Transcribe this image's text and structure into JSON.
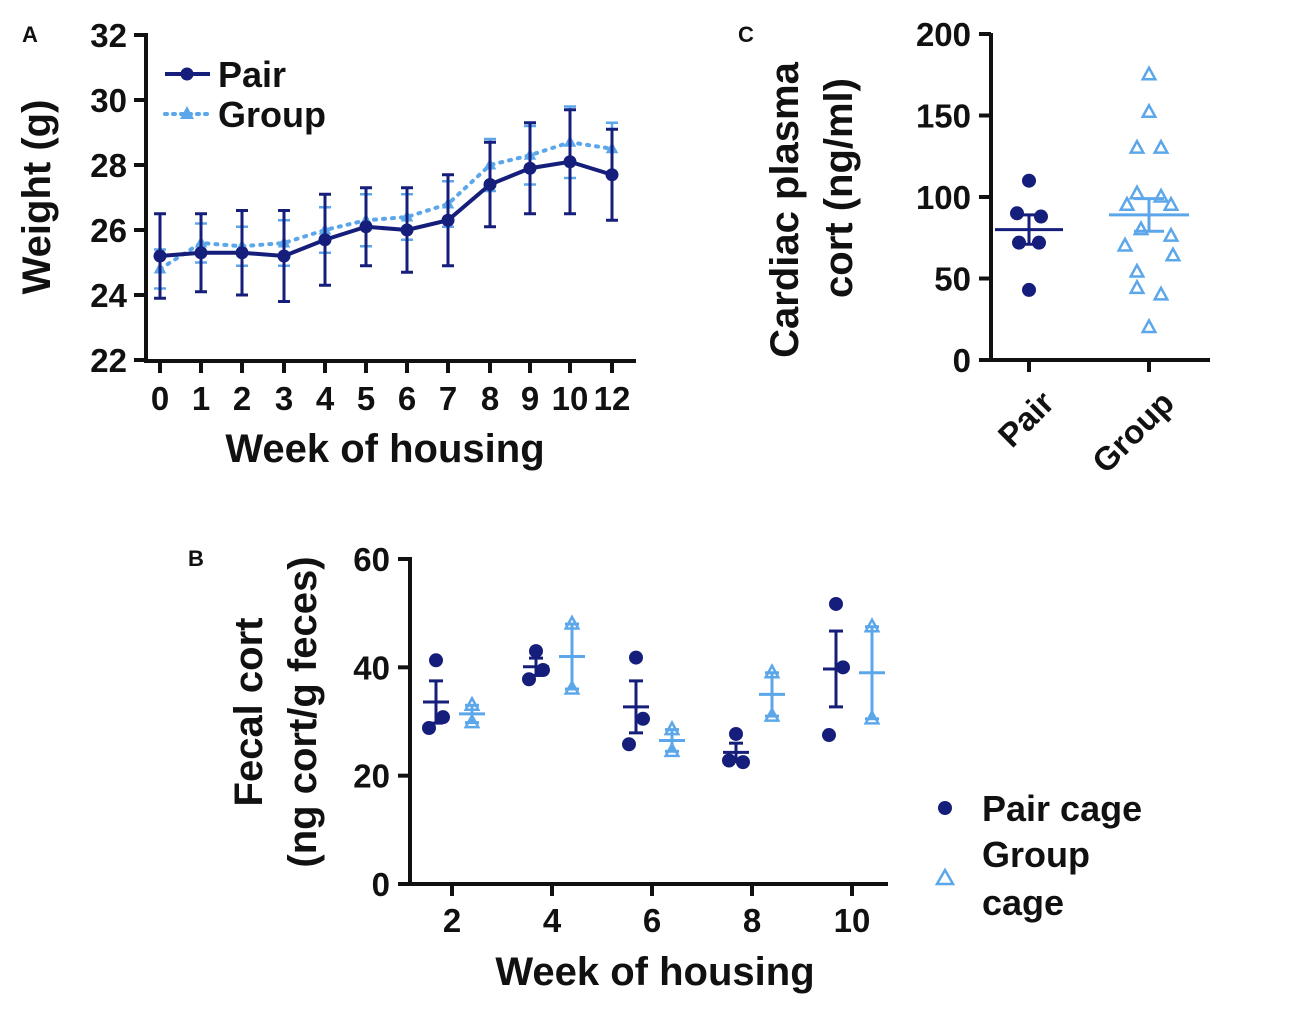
{
  "colors": {
    "pair": "#151e7a",
    "group": "#5ca7ea",
    "axis": "#111111"
  },
  "chart_data": [
    {
      "panel": "A",
      "type": "line",
      "xlabel": "Week of housing",
      "ylabel": "Weight (g)",
      "ylim": [
        22,
        32
      ],
      "yticks": [
        "22",
        "24",
        "26",
        "28",
        "30",
        "32"
      ],
      "xticks": [
        "0",
        "1",
        "2",
        "3",
        "4",
        "5",
        "6",
        "7",
        "8",
        "9",
        "10",
        "12"
      ],
      "legend": {
        "position": "top-left",
        "entries": [
          "Pair",
          "Group"
        ]
      },
      "series": [
        {
          "name": "Pair",
          "style": "solid",
          "marker": "circle",
          "colorKey": "pair",
          "values": [
            25.2,
            25.3,
            25.3,
            25.2,
            25.7,
            26.1,
            26.0,
            26.3,
            27.4,
            27.9,
            28.1,
            27.7
          ],
          "err": [
            1.3,
            1.2,
            1.3,
            1.4,
            1.4,
            1.2,
            1.3,
            1.4,
            1.3,
            1.4,
            1.6,
            1.4
          ]
        },
        {
          "name": "Group",
          "style": "dotted",
          "marker": "triangle",
          "colorKey": "group",
          "values": [
            24.8,
            25.6,
            25.5,
            25.6,
            26.0,
            26.3,
            26.4,
            26.8,
            28.0,
            28.3,
            28.7,
            28.5
          ],
          "err": [
            0.6,
            0.6,
            0.6,
            0.7,
            0.7,
            0.8,
            0.7,
            0.7,
            0.8,
            0.9,
            1.1,
            0.8
          ]
        }
      ]
    },
    {
      "panel": "B",
      "type": "scatter",
      "xlabel": "Week of housing",
      "ylabel": "Fecal cort",
      "ylabel2": "(ng cort/g feces)",
      "ylim": [
        0,
        60
      ],
      "yticks": [
        "0",
        "20",
        "40",
        "60"
      ],
      "categories": [
        "2",
        "4",
        "6",
        "8",
        "10"
      ],
      "legend": {
        "position": "right",
        "entries": [
          "Pair cage",
          "Group",
          "cage"
        ]
      },
      "series": [
        {
          "name": "Pair cage",
          "marker": "circle",
          "colorKey": "pair",
          "points": [
            [
              41.3,
              30.8,
              28.8
            ],
            [
              43.0,
              39.5,
              37.8
            ],
            [
              41.8,
              30.5,
              25.8
            ],
            [
              27.7,
              22.5,
              22.8
            ],
            [
              51.7,
              40.0,
              27.5
            ]
          ],
          "means": [
            33.6,
            40.1,
            32.7,
            24.3,
            39.7
          ],
          "sem": [
            3.9,
            1.6,
            4.8,
            1.7,
            7.0
          ]
        },
        {
          "name": "Group cage",
          "marker": "triangle",
          "colorKey": "group",
          "points": [
            [
              33.0,
              29.8
            ],
            [
              48.0,
              36.0
            ],
            [
              28.5,
              24.5
            ],
            [
              39.0,
              31.0
            ],
            [
              47.5,
              30.5
            ]
          ],
          "means": [
            31.4,
            42.0,
            26.5,
            35.0,
            39.0
          ],
          "sem": [
            1.6,
            6.0,
            2.0,
            4.0,
            8.5
          ]
        }
      ]
    },
    {
      "panel": "C",
      "type": "scatter",
      "ylabel": "Cardiac plasma",
      "ylabel2": "cort (ng/ml)",
      "ylim": [
        0,
        200
      ],
      "yticks": [
        "0",
        "50",
        "100",
        "150",
        "200"
      ],
      "categories": [
        "Pair",
        "Group"
      ],
      "series": [
        {
          "name": "Pair",
          "marker": "circle",
          "colorKey": "pair",
          "points": [
            110,
            90,
            88,
            72,
            72,
            43
          ],
          "mean": 80,
          "sem": 9
        },
        {
          "name": "Group",
          "marker": "triangle",
          "colorKey": "group",
          "points": [
            175,
            152,
            130,
            130,
            102,
            100,
            95,
            95,
            80,
            76,
            70,
            64,
            54,
            44,
            40,
            20
          ],
          "mean": 89,
          "sem": 10
        }
      ]
    }
  ]
}
